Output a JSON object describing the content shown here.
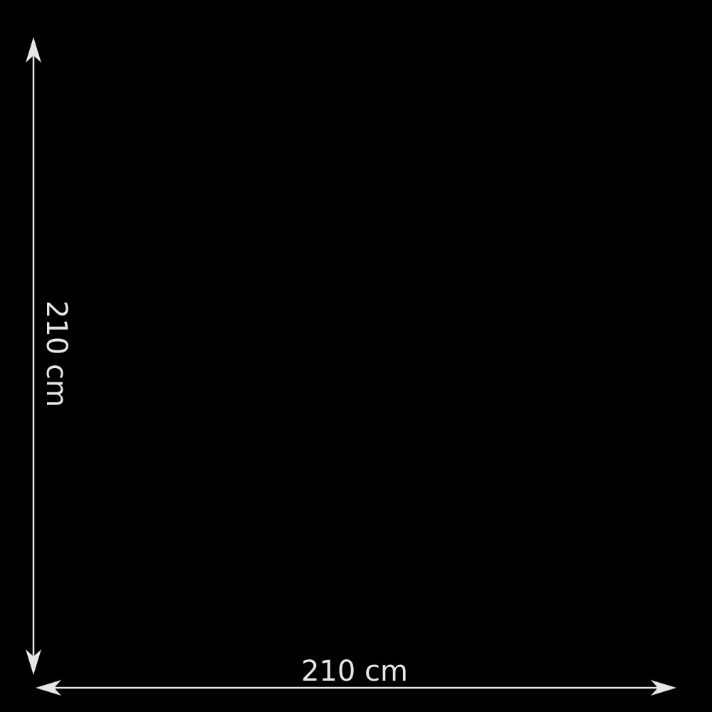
{
  "colors": {
    "background": "#000000",
    "foreground": "#e6e6e6"
  },
  "dimensions": {
    "width_label": "210 cm",
    "height_label": "210 cm"
  }
}
